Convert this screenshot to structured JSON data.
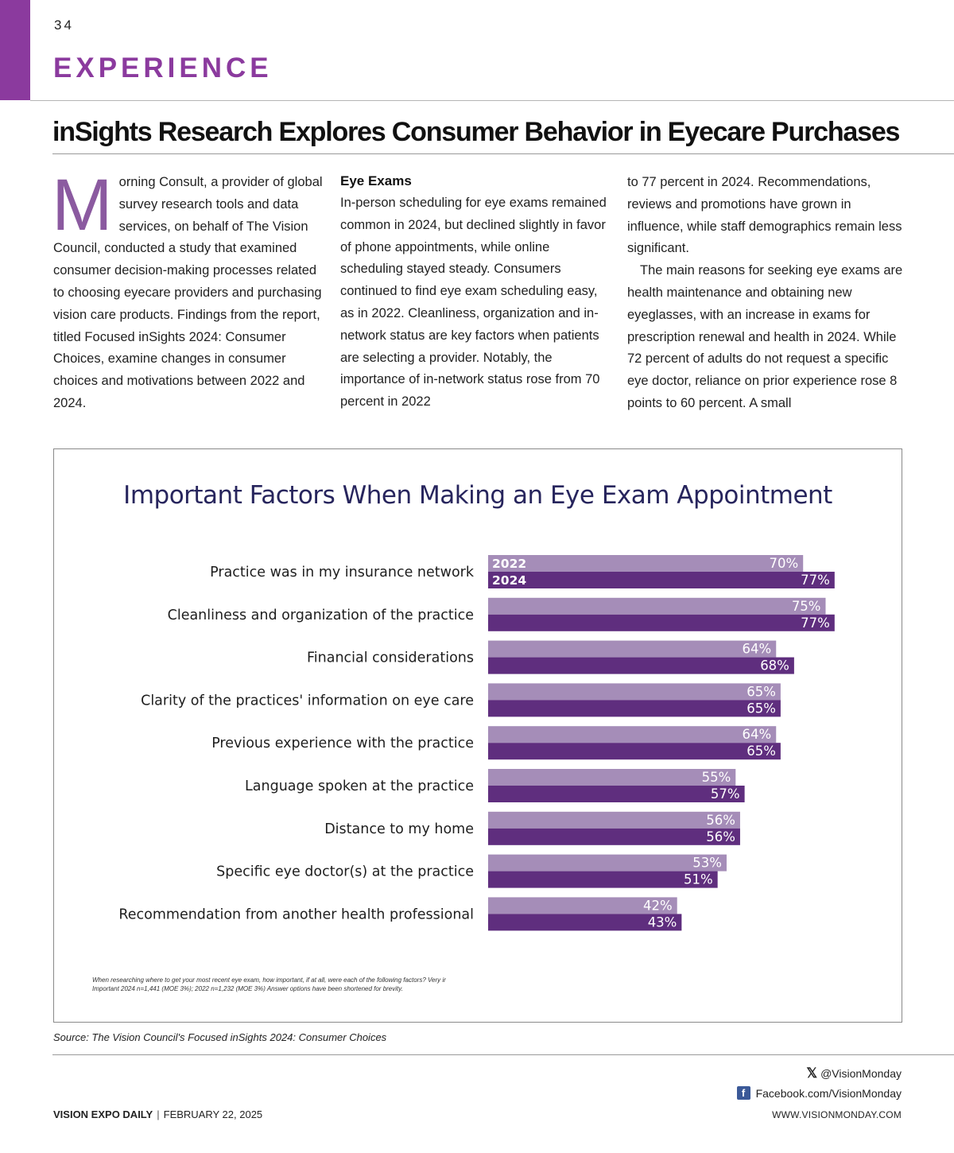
{
  "page": {
    "number": "34",
    "section": "EXPERIENCE",
    "headline": "inSights Research Explores Consumer Behavior in Eyecare Purchases"
  },
  "article": {
    "dropcap": "M",
    "col1": "orning Consult, a provider of global survey research tools and data services, on behalf of The Vision Council, conducted a study that examined consumer decision-making processes related to choosing eyecare providers and purchasing vision care products. Findings from the report, titled Focused inSights 2024: Consumer Choices, examine changes in consumer choices and motivations between 2022 and 2024.",
    "col2_heading": "Eye Exams",
    "col2": "In-person scheduling for eye exams remained common in 2024, but declined slightly in favor of phone appointments, while online scheduling stayed steady. Consumers continued to find eye exam scheduling easy, as in 2022. Cleanliness, organization and in-network status are key factors when patients are selecting a provider. Notably, the importance of in-network status rose from 70 percent in 2022",
    "col3_p1": "to 77 percent in 2024. Recommendations, reviews and promotions have grown in influence, while staff demographics remain less significant.",
    "col3_p2": "The main reasons for seeking eye exams are health maintenance and obtaining new eyeglasses, with an increase in exams for prescription renewal and health in 2024. While 72 percent of adults do not request a specific eye doctor, reliance on prior experience rose 8 points to 60 percent. A small"
  },
  "chart_data": {
    "type": "bar",
    "orientation": "horizontal",
    "title": "Important Factors When Making an Eye Exam Appointment",
    "categories": [
      "Practice was in my insurance network",
      "Cleanliness and organization of the practice",
      "Financial considerations",
      "Clarity of the practices' information on eye care",
      "Previous experience with the practice",
      "Language spoken at the practice",
      "Distance to my home",
      "Specific eye doctor(s) at the practice",
      "Recommendation from another health professional"
    ],
    "series": [
      {
        "name": "2022",
        "color": "#a58db8",
        "values": [
          70,
          75,
          64,
          65,
          64,
          55,
          56,
          53,
          42
        ]
      },
      {
        "name": "2024",
        "color": "#5f2e7e",
        "values": [
          77,
          77,
          68,
          65,
          65,
          57,
          56,
          51,
          43
        ]
      }
    ],
    "value_suffix": "%",
    "xlim": [
      0,
      100
    ],
    "grid": false,
    "legend": "inside first bar pair",
    "note_line1": "When researching where to get your most recent eye exam, how important, if at all, were each of the following factors? Very ir",
    "note_line2": "Important 2024 n=1,441 (MOE 3%); 2022 n=1,232 (MOE 3%) Answer options have been shortened for brevity."
  },
  "source": "Source: The Vision Council's Focused inSights 2024: Consumer Choices",
  "footer": {
    "twitter": "@VisionMonday",
    "facebook": "Facebook.com/VisionMonday",
    "publication": "VISION EXPO DAILY",
    "separator": "|",
    "date": "FEBRUARY 22, 2025",
    "website": "WWW.VISIONMONDAY.COM",
    "icons": {
      "twitter": "x-logo",
      "facebook": "facebook-logo"
    }
  },
  "colors": {
    "accent": "#8b3a9e",
    "title_navy": "#27255d"
  }
}
